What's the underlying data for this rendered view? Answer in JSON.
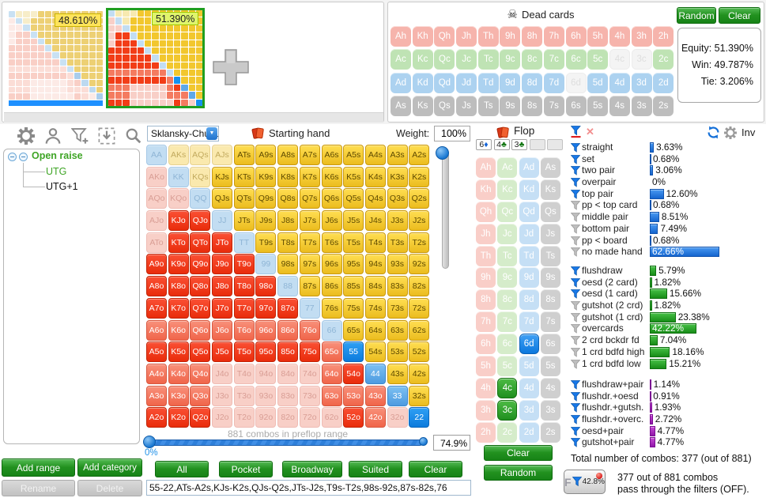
{
  "players": {
    "p1_equity_label": "48.610%",
    "p2_equity_label": "51.390%"
  },
  "dead_cards_panel": {
    "title": "Dead cards",
    "random_button": "Random",
    "clear_button": "Clear",
    "stats": {
      "equity": "Equity: 51.390%",
      "win": "Win: 49.787%",
      "tie": "Tie: 3.206%"
    },
    "ranks": [
      "A",
      "K",
      "Q",
      "J",
      "T",
      "9",
      "8",
      "7",
      "6",
      "5",
      "4",
      "3",
      "2"
    ],
    "suits": [
      "h",
      "c",
      "d",
      "s"
    ],
    "disabled_cards": [
      "4c",
      "3c",
      "6d"
    ]
  },
  "tree_panel": {
    "root_label": "Open raise",
    "children": [
      "UTG",
      "UTG+1"
    ],
    "add_range_button": "Add range",
    "add_category_button": "Add category",
    "rename_button": "Rename",
    "delete_button": "Delete"
  },
  "range_panel": {
    "dropdown_value": "Sklansky-Chubu",
    "header_label": "Starting hand",
    "weight_label": "Weight:",
    "weight_value": "100%",
    "combos_caption": "881 combos in preflop range",
    "slider_min_label": "0%",
    "slider_value": "74.9%",
    "quick_buttons": [
      "All",
      "Pocket",
      "Broadway",
      "Suited",
      "Clear"
    ],
    "range_string": "55-22,ATs-A2s,KJs-K2s,QJs-Q2s,JTs-J2s,T9s-T2s,98s-92s,87s-82s,76",
    "matrix_classes": [
      "pb sf sf sf sb sb sb sb sb sb sb sb sb",
      "of pb sf sb sb sb sb sb sb sb sb sb sb",
      "of of pb sb sb sb sb sb sb sb sb sb sb",
      "of ob ob pb sb sb sb sb sb sb sb sb sb",
      "of ob ob ob pb sb sb sb sb sb sb sb sb",
      "ob ob ob ob ob pb sb sb sb sb sb sb sb",
      "ob ob ob ob ob ob pb sb sb sb sb sb sb",
      "ob ob ob ob ob ob ob pb sb sb sb sb sb",
      "om om om om om om om om pb sb sb sb sb",
      "ob ob ob ob ob ob ob ob om ps sb sb sb",
      "om om om of of of of of om ob pm sb sb",
      "om om om of of of of of om om om pm sb",
      "ob ob ob of of of of of of ob om of ps"
    ]
  },
  "flop_panel": {
    "title": "Flop",
    "slots": [
      {
        "rank": "6",
        "suit_glyph": "♦",
        "suit": "d"
      },
      {
        "rank": "4",
        "suit_glyph": "♣",
        "suit": "c"
      },
      {
        "rank": "3",
        "suit_glyph": "♣",
        "suit": "c"
      },
      null,
      null
    ],
    "selected_cards": {
      "6d": "sel-d",
      "4c": "sel-c",
      "3c": "sel-c"
    },
    "clear_button": "Clear",
    "random_button": "Random"
  },
  "filters_panel": {
    "inv_label": "Inv",
    "groups": [
      {
        "color": "blue",
        "items": [
          {
            "label": "straight",
            "value": 3.63,
            "text": "3.63%",
            "active": true
          },
          {
            "label": "set",
            "value": 0.68,
            "text": "0.68%",
            "active": true
          },
          {
            "label": "two pair",
            "value": 3.06,
            "text": "3.06%",
            "active": true
          },
          {
            "label": "overpair",
            "value": 0,
            "text": "0%",
            "active": true
          },
          {
            "label": "top pair",
            "value": 12.6,
            "text": "12.60%",
            "active": true
          },
          {
            "label": "pp < top card",
            "value": 0.68,
            "text": "0.68%",
            "active": false
          },
          {
            "label": "middle pair",
            "value": 8.51,
            "text": "8.51%",
            "active": false
          },
          {
            "label": "bottom pair",
            "value": 7.49,
            "text": "7.49%",
            "active": false
          },
          {
            "label": "pp < board",
            "value": 0.68,
            "text": "0.68%",
            "active": false
          },
          {
            "label": "no made hand",
            "value": 62.66,
            "text": "62.66%",
            "active": false
          }
        ]
      },
      {
        "color": "green",
        "items": [
          {
            "label": "flushdraw",
            "value": 5.79,
            "text": "5.79%",
            "active": true
          },
          {
            "label": "oesd (2 card)",
            "value": 1.82,
            "text": "1.82%",
            "active": true
          },
          {
            "label": "oesd (1 card)",
            "value": 15.66,
            "text": "15.66%",
            "active": true
          },
          {
            "label": "gutshot (2 crd)",
            "value": 1.82,
            "text": "1.82%",
            "active": false
          },
          {
            "label": "gutshot (1 crd)",
            "value": 23.38,
            "text": "23.38%",
            "active": false
          },
          {
            "label": "overcards",
            "value": 42.22,
            "text": "42.22%",
            "active": false
          },
          {
            "label": "2 crd bckdr fd",
            "value": 7.04,
            "text": "7.04%",
            "active": false
          },
          {
            "label": "1 crd bdfd high",
            "value": 18.16,
            "text": "18.16%",
            "active": false
          },
          {
            "label": "1 crd bdfd low",
            "value": 15.21,
            "text": "15.21%",
            "active": false
          }
        ]
      },
      {
        "color": "purple",
        "items": [
          {
            "label": "flushdraw+pair",
            "value": 1.14,
            "text": "1.14%",
            "active": true
          },
          {
            "label": "flushdr.+oesd",
            "value": 0.91,
            "text": "0.91%",
            "active": true
          },
          {
            "label": "flushdr.+gutsh.",
            "value": 1.93,
            "text": "1.93%",
            "active": true
          },
          {
            "label": "flushdr.+overc.",
            "value": 2.72,
            "text": "2.72%",
            "active": true
          },
          {
            "label": "oesd+pair",
            "value": 4.77,
            "text": "4.77%",
            "active": true
          },
          {
            "label": "gutshot+pair",
            "value": 4.77,
            "text": "4.77%",
            "active": true
          }
        ]
      }
    ],
    "total_label": "Total number of combos: 377 (out of 881)",
    "badge_letter": "F",
    "badge_value": "42.8%",
    "note_line1": "377 out of 881 combos",
    "note_line2": "pass through the filters (OFF)."
  },
  "colors": {
    "button_green": "#1F8F1F",
    "bar_blue": "#1565CE",
    "bar_green": "#188D18",
    "bar_purple": "#9016A8",
    "funnel_active": "#1878E8",
    "funnel_inactive": "#BEBEBE",
    "flop_selected_diamond": "#0B78DE",
    "flop_selected_club": "#1F8F1F",
    "mini_bar_blue": "#1E90FF",
    "mini_active_border": "#1F9E1F"
  }
}
